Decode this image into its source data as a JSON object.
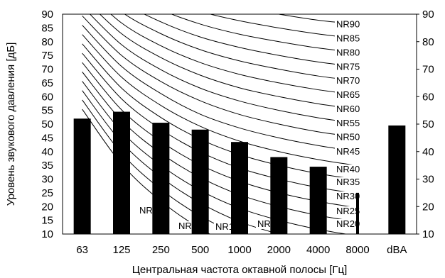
{
  "chart_data": {
    "type": "bar",
    "title": "",
    "xlabel": "Центральная частота октавной полосы [Гц]",
    "ylabel": "Уровень звукового давления [дБ]",
    "categories": [
      "63",
      "125",
      "250",
      "500",
      "1000",
      "2000",
      "4000",
      "8000",
      "dBA"
    ],
    "values": [
      52,
      54.5,
      50.5,
      48,
      43.5,
      38,
      34.5,
      25,
      49.5
    ],
    "ylim": [
      10,
      90
    ],
    "yticks": [
      10,
      15,
      20,
      25,
      30,
      35,
      40,
      45,
      50,
      55,
      60,
      65,
      70,
      75,
      80,
      85,
      90
    ],
    "ytick_labels_right": [
      10,
      20,
      30,
      40,
      50,
      60,
      70,
      80,
      90
    ],
    "grid": false,
    "bar_color": "#000000",
    "curve_color": "#000000",
    "nr_curves": [
      {
        "name": "NR0",
        "values": [
          55.4,
          35.5,
          22.0,
          12.0,
          4.8,
          0,
          -3.5,
          -6.1
        ]
      },
      {
        "name": "NR5",
        "values": [
          58.8,
          39.4,
          26.3,
          16.6,
          9.7,
          5.0,
          1.6,
          -1.0
        ]
      },
      {
        "name": "NR10",
        "values": [
          62.2,
          43.4,
          30.7,
          21.3,
          14.5,
          10.0,
          6.6,
          4.2
        ]
      },
      {
        "name": "NR15",
        "values": [
          65.6,
          47.3,
          35.0,
          25.9,
          19.4,
          15.0,
          11.7,
          9.3
        ]
      },
      {
        "name": "NR20",
        "values": [
          69.0,
          51.3,
          39.4,
          30.6,
          24.3,
          20.0,
          16.8,
          14.4
        ]
      },
      {
        "name": "NR25",
        "values": [
          72.4,
          55.2,
          43.7,
          35.2,
          29.2,
          25.0,
          21.9,
          19.5
        ]
      },
      {
        "name": "NR30",
        "values": [
          75.8,
          59.2,
          48.1,
          39.9,
          34.0,
          30.0,
          26.9,
          24.7
        ]
      },
      {
        "name": "NR35",
        "values": [
          79.2,
          63.1,
          52.4,
          44.5,
          38.9,
          35.0,
          32.0,
          29.8
        ]
      },
      {
        "name": "NR40",
        "values": [
          82.6,
          67.1,
          56.8,
          49.2,
          43.8,
          40.0,
          37.1,
          34.9
        ]
      },
      {
        "name": "NR45",
        "values": [
          86.0,
          71.0,
          61.1,
          53.6,
          48.6,
          45.0,
          42.2,
          40.0
        ]
      },
      {
        "name": "NR50",
        "values": [
          89.4,
          75.0,
          65.5,
          58.5,
          53.5,
          50.0,
          47.2,
          45.2
        ]
      },
      {
        "name": "NR55",
        "values": [
          92.9,
          78.9,
          69.8,
          63.1,
          58.4,
          55.0,
          52.3,
          50.3
        ]
      },
      {
        "name": "NR60",
        "values": [
          96.3,
          82.9,
          74.2,
          67.8,
          63.2,
          60.0,
          57.4,
          55.4
        ]
      },
      {
        "name": "NR65",
        "values": [
          99.7,
          86.8,
          78.5,
          72.4,
          68.1,
          65.0,
          62.5,
          60.6
        ]
      },
      {
        "name": "NR70",
        "values": [
          103.1,
          90.8,
          82.9,
          77.1,
          73.0,
          70.0,
          67.5,
          65.7
        ]
      },
      {
        "name": "NR75",
        "values": [
          106.5,
          94.7,
          87.2,
          81.7,
          77.9,
          75.0,
          72.6,
          70.8
        ]
      },
      {
        "name": "NR80",
        "values": [
          109.9,
          98.7,
          91.6,
          86.4,
          82.7,
          80.0,
          77.7,
          76.0
        ]
      },
      {
        "name": "NR85",
        "values": [
          113.3,
          102.6,
          95.9,
          91.0,
          87.6,
          85.0,
          82.8,
          81.1
        ]
      },
      {
        "name": "NR90",
        "values": [
          116.7,
          106.6,
          100.3,
          95.7,
          92.5,
          90.0,
          87.8,
          86.3
        ]
      }
    ]
  }
}
